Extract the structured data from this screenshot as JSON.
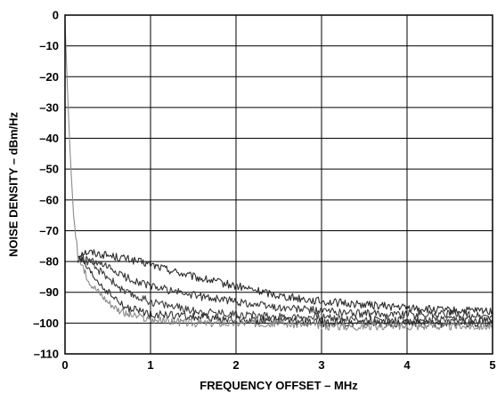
{
  "chart_data": {
    "type": "line",
    "title": "",
    "xlabel": "FREQUENCY OFFSET – MHz",
    "ylabel": "NOISE DENSITY – dBm/Hz",
    "xlim": [
      0,
      5
    ],
    "ylim": [
      -110,
      0
    ],
    "x_ticks": [
      0,
      1,
      2,
      3,
      4,
      5
    ],
    "x_tick_labels": [
      "0",
      "1",
      "2",
      "3",
      "4",
      "5"
    ],
    "y_ticks": [
      0,
      -10,
      -20,
      -30,
      -40,
      -50,
      -60,
      -70,
      -80,
      -90,
      -100,
      -110
    ],
    "y_tick_labels": [
      "0",
      "–10",
      "–20",
      "–30",
      "–40",
      "–50",
      "–60",
      "–70",
      "–80",
      "–90",
      "–100",
      "–110"
    ],
    "grid": true,
    "legend": "none",
    "series": [
      {
        "color": "#2b2b2b",
        "x": [
          0.15,
          0.2,
          0.3,
          0.5,
          0.7,
          1.0,
          1.5,
          2.0,
          2.5,
          3.0,
          3.5,
          4.0,
          4.5,
          5.0
        ],
        "y": [
          -78,
          -77,
          -77,
          -78,
          -79,
          -81,
          -85,
          -88,
          -91,
          -93,
          -94,
          -95,
          -96,
          -96
        ]
      },
      {
        "color": "#353535",
        "x": [
          0.15,
          0.2,
          0.3,
          0.5,
          0.7,
          1.0,
          1.5,
          2.0,
          2.5,
          3.0,
          3.5,
          4.0,
          4.5,
          5.0
        ],
        "y": [
          -80,
          -79,
          -80,
          -82,
          -85,
          -88,
          -91,
          -93,
          -95,
          -96,
          -97,
          -97,
          -97,
          -98
        ]
      },
      {
        "color": "#3f3f3f",
        "x": [
          0.15,
          0.2,
          0.3,
          0.5,
          0.7,
          1.0,
          1.5,
          2.0,
          2.5,
          3.0,
          3.5,
          4.0,
          4.5,
          5.0
        ],
        "y": [
          -80,
          -79,
          -81,
          -85,
          -90,
          -93,
          -96,
          -97,
          -98,
          -98,
          -99,
          -99,
          -99,
          -99
        ]
      },
      {
        "color": "#2f2f2f",
        "x": [
          0.15,
          0.2,
          0.3,
          0.5,
          0.7,
          1.0,
          1.5,
          2.0,
          2.5,
          3.0,
          3.5,
          4.0,
          4.5,
          5.0
        ],
        "y": [
          -79,
          -80,
          -84,
          -90,
          -95,
          -97,
          -98,
          -99,
          -99,
          -100,
          -100,
          -100,
          -100,
          -100
        ]
      },
      {
        "color": "#8a8a8a",
        "x": [
          0.0,
          0.03,
          0.06,
          0.1,
          0.15,
          0.2,
          0.3,
          0.5,
          0.7,
          1.0,
          1.5,
          2.0,
          2.5,
          3.0,
          3.5,
          4.0,
          4.5,
          5.0
        ],
        "y": [
          -2,
          -25,
          -45,
          -65,
          -78,
          -82,
          -87,
          -93,
          -97,
          -99,
          -100,
          -100,
          -100,
          -101,
          -101,
          -101,
          -101,
          -101
        ]
      }
    ]
  }
}
